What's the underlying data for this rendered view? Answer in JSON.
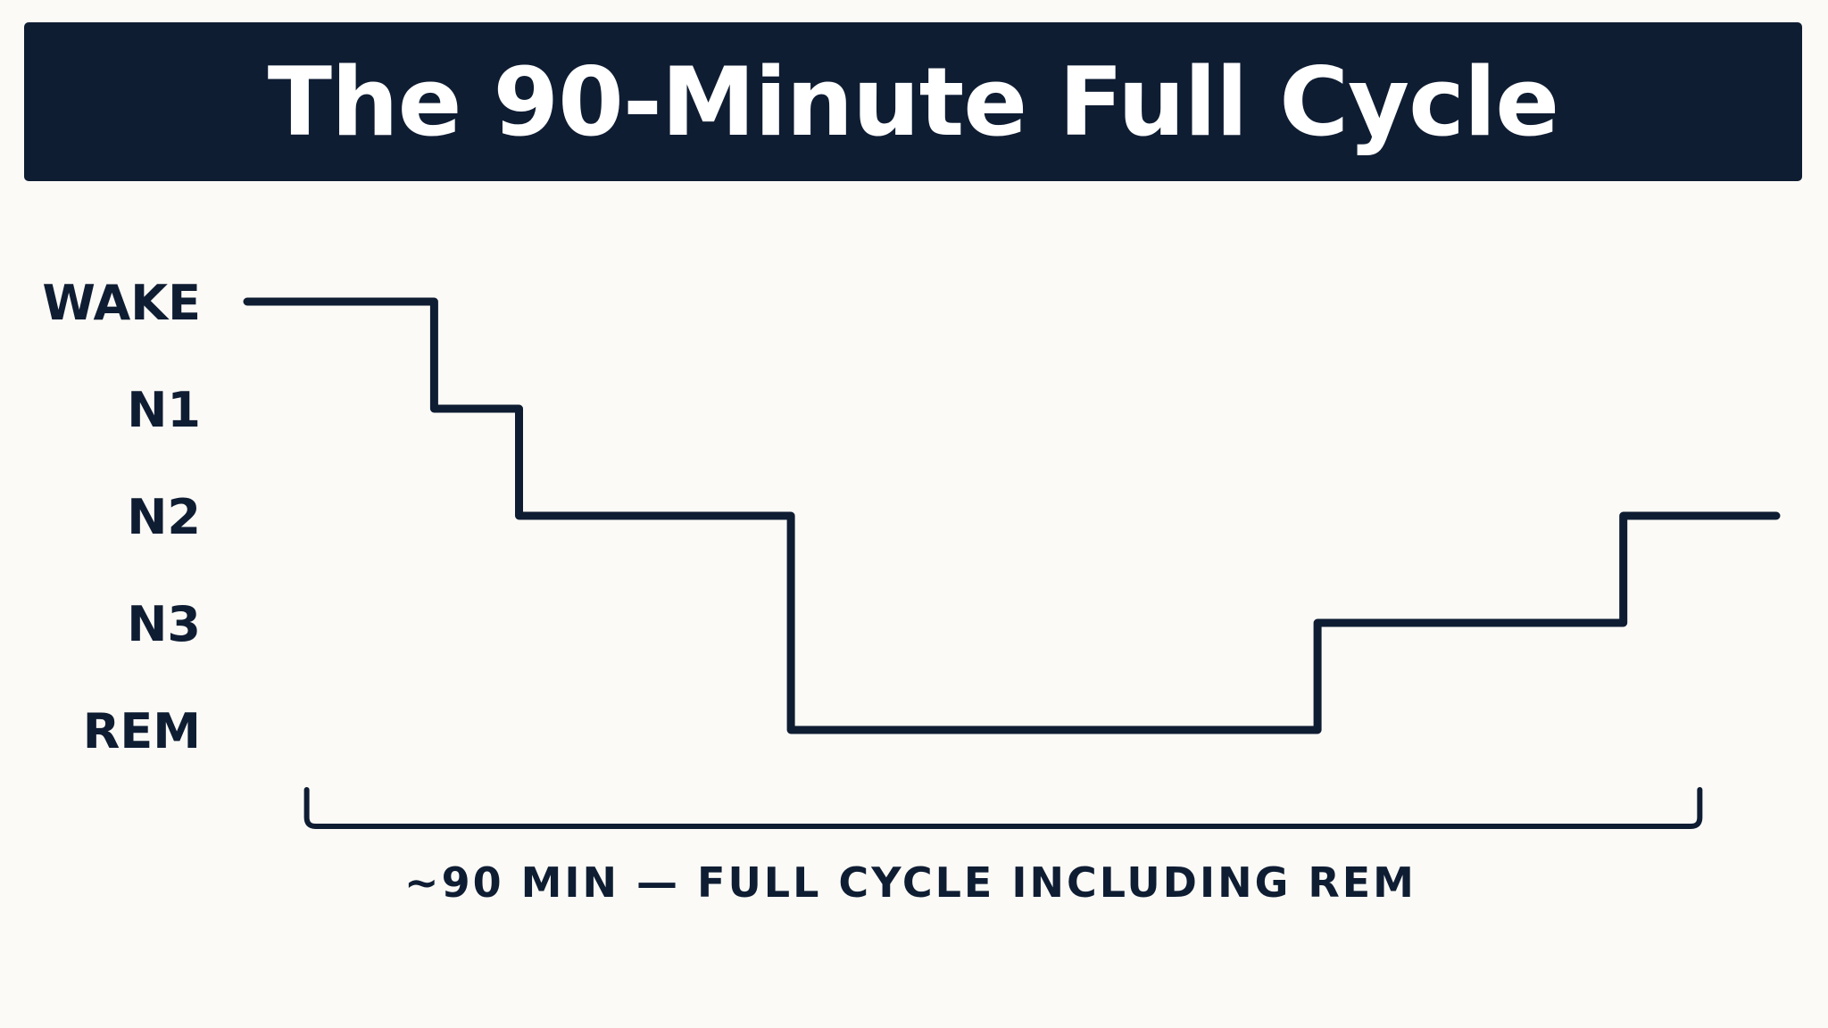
{
  "header": {
    "title": "The 90-Minute Full Cycle"
  },
  "chart_data": {
    "type": "line",
    "title": "The 90-Minute Full Cycle",
    "step": true,
    "y_categories": [
      "WAKE",
      "N1",
      "N2",
      "N3",
      "REM"
    ],
    "xlim": [
      0,
      90
    ],
    "series": [
      {
        "points": [
          {
            "x": 0,
            "y": "WAKE"
          },
          {
            "x": 11,
            "y": "WAKE"
          },
          {
            "x": 11,
            "y": "N1"
          },
          {
            "x": 16,
            "y": "N1"
          },
          {
            "x": 16,
            "y": "N2"
          },
          {
            "x": 32,
            "y": "N2"
          },
          {
            "x": 32,
            "y": "REM"
          },
          {
            "x": 63,
            "y": "REM"
          },
          {
            "x": 63,
            "y": "N3"
          },
          {
            "x": 81,
            "y": "N3"
          },
          {
            "x": 81,
            "y": "N2"
          },
          {
            "x": 90,
            "y": "N2"
          }
        ]
      }
    ],
    "bracket_range": [
      3.5,
      85.5
    ],
    "annotation": "~90 MIN — FULL CYCLE INCLUDING REM",
    "line_color": "#0f1d33",
    "grid": false,
    "legend": "none"
  }
}
